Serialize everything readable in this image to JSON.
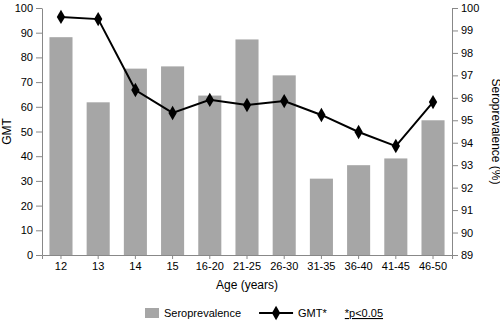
{
  "chart_data": {
    "type": "bar",
    "xlabel": "Age (years)",
    "ylabel": "GMT",
    "y2label": "Seroprevalence (%)",
    "categories": [
      "12",
      "13",
      "14",
      "15",
      "16-20",
      "21-25",
      "26-30",
      "31-35",
      "36-40",
      "41-45",
      "46-50"
    ],
    "series": [
      {
        "name": "Seroprevalence",
        "type": "bar",
        "axis": "y2",
        "color": "#a6a6a6",
        "values": [
          98.7,
          95.8,
          97.3,
          97.4,
          96.1,
          98.6,
          97.0,
          92.4,
          93.0,
          93.3,
          95.0
        ]
      },
      {
        "name": "GMT*",
        "type": "line",
        "color": "#000000",
        "marker": "diamond",
        "line_style": "solid",
        "values": [
          96.4,
          95.5,
          66.8,
          57.5,
          62.8,
          60.7,
          62.3,
          56.7,
          49.8,
          44.1,
          61.9
        ]
      }
    ],
    "ylim": [
      0,
      100
    ],
    "yticks": [
      0,
      10,
      20,
      30,
      40,
      50,
      60,
      70,
      80,
      90,
      100
    ],
    "y2lim": [
      89,
      100
    ],
    "y2ticks": [
      89,
      90,
      91,
      92,
      93,
      94,
      95,
      96,
      97,
      98,
      99,
      100
    ],
    "annotations": [
      "*p<0.05"
    ],
    "legend": "bottom",
    "grid": false
  }
}
